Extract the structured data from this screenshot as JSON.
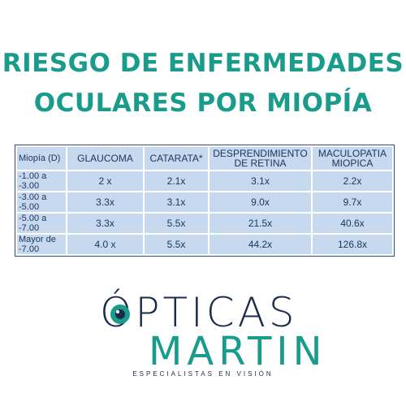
{
  "title": {
    "line1": "RIESGO DE ENFERMEDADES",
    "line2": "OCULARES POR MIOPÍA"
  },
  "table": {
    "header": [
      "Miopía (D)",
      "GLAUCOMA",
      "CATARATA*",
      "DESPRENDIMIENTO DE RETINA",
      "MACULOPATIA MIOPICA"
    ],
    "rows": [
      [
        "-1.00 a -3.00",
        "2 x",
        "2.1x",
        "3.1x",
        "2.2x"
      ],
      [
        "-3.00 a -5.00",
        "3.3x",
        "3.1x",
        "9.0x",
        "9.7x"
      ],
      [
        "-5.00 a -7.00",
        "3.3x",
        "5.5x",
        "21.5x",
        "40.6x"
      ],
      [
        "Mayor de -7.00",
        "4.0 x",
        "5.5x",
        "44.2x",
        "126.8x"
      ]
    ]
  },
  "logo": {
    "name": "ÓPTICAS",
    "brand": "MARTIN",
    "tagline": "ESPECIALISTAS EN VISIÓN"
  }
}
